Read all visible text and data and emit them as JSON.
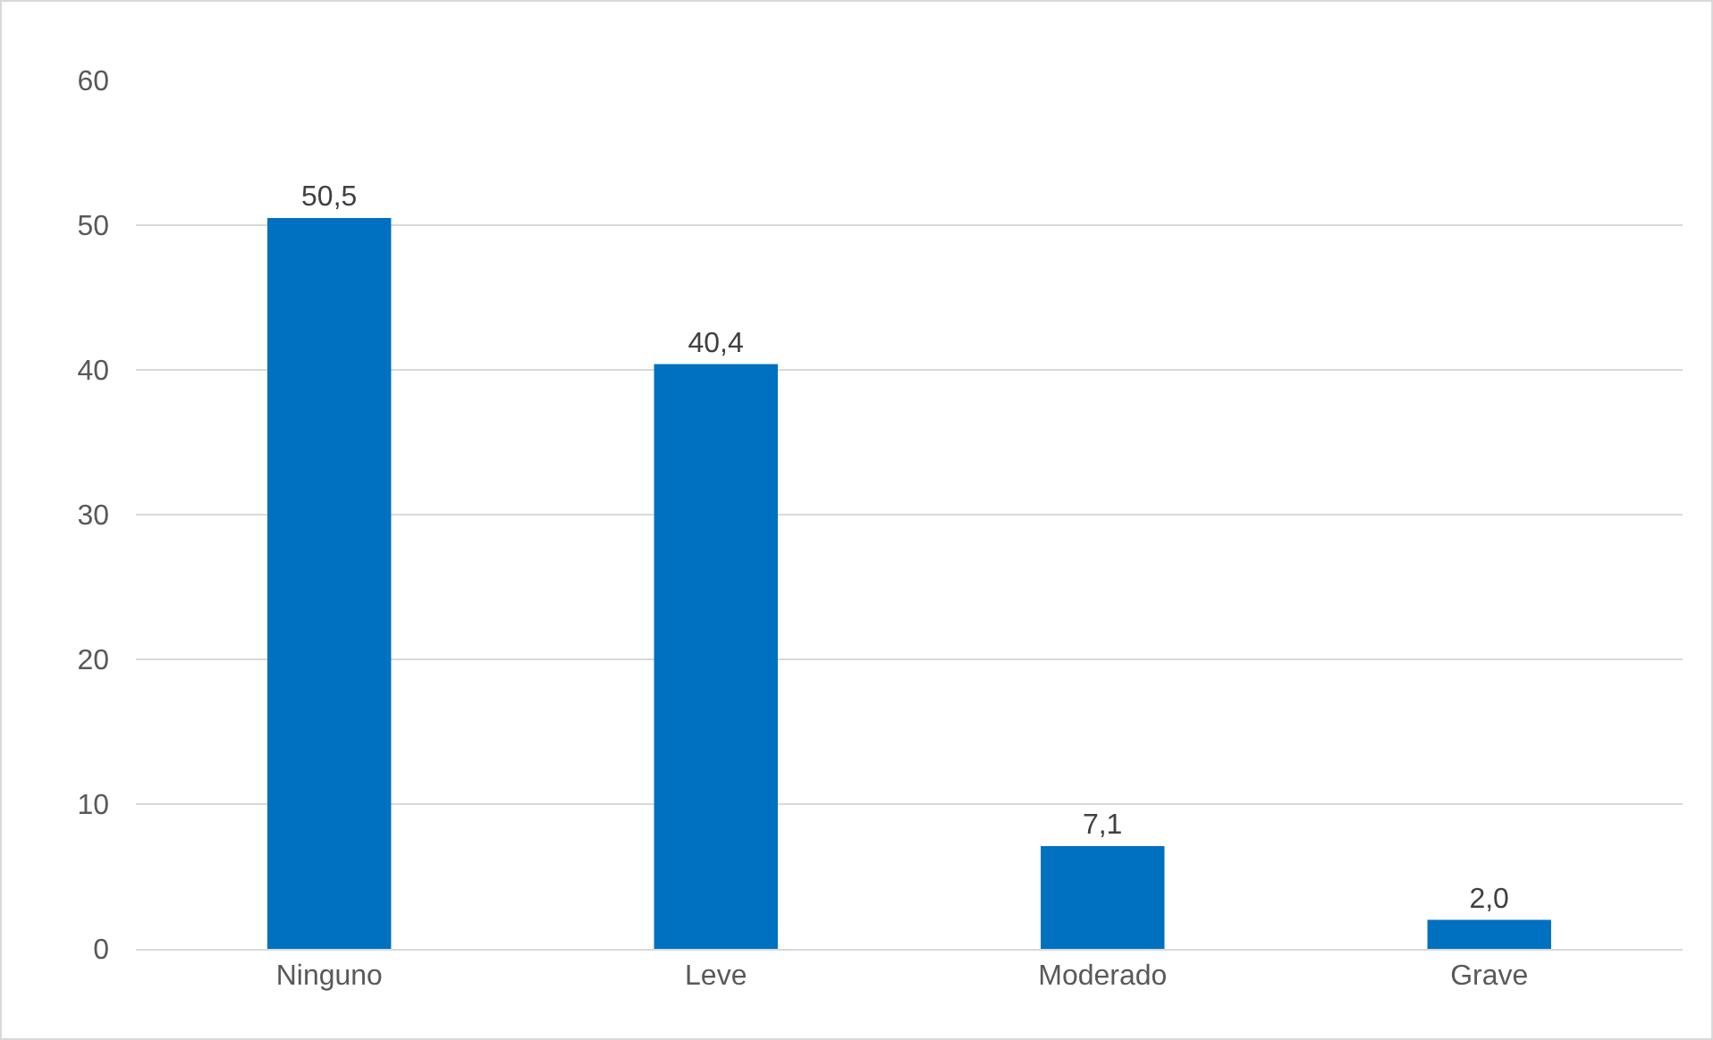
{
  "chart_data": {
    "type": "bar",
    "categories": [
      "Ninguno",
      "Leve",
      "Moderado",
      "Grave"
    ],
    "values": [
      50.5,
      40.4,
      7.1,
      2.0
    ],
    "value_labels": [
      "50,5",
      "40,4",
      "7,1",
      "2,0"
    ],
    "color": "#0070c0",
    "ylim": [
      0,
      60
    ],
    "yticks": [
      0,
      10,
      20,
      30,
      40,
      50,
      60
    ],
    "grid": "y",
    "legend": false
  }
}
